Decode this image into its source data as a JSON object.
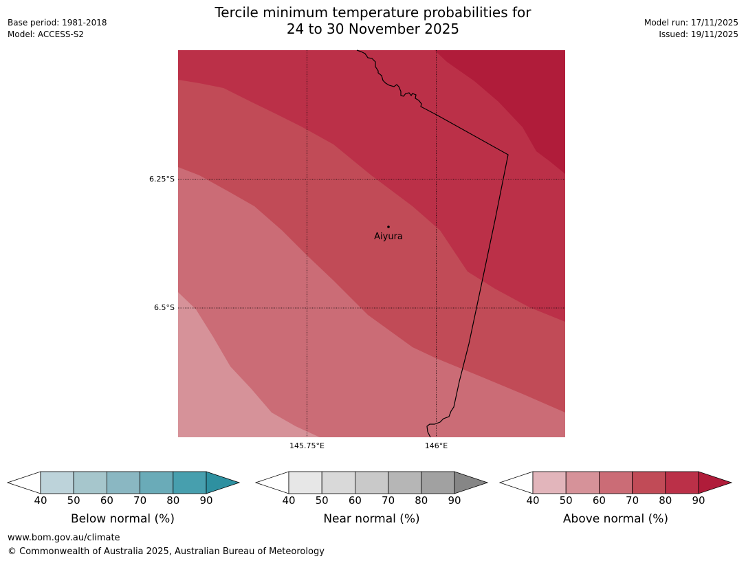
{
  "header": {
    "title_line1": "Tercile minimum temperature probabilities for",
    "title_line2": "24 to 30 November 2025",
    "base_period": "Base period: 1981-2018",
    "model": "Model: ACCESS-S2",
    "model_run": "Model run: 17/11/2025",
    "issued": "Issued: 19/11/2025"
  },
  "map": {
    "lat_labels": [
      "6.25°S",
      "6.5°S"
    ],
    "lon_labels": [
      "145.75°E",
      "146°E"
    ],
    "place_name": "Aiyura"
  },
  "colorbars": [
    {
      "label": "Below normal (%)",
      "ticks": [
        "40",
        "50",
        "60",
        "70",
        "80",
        "90"
      ],
      "colors": [
        "#bdd3da",
        "#a6c6cc",
        "#8ab7c2",
        "#6aabb8",
        "#479fae"
      ],
      "extend_color": "#2e90a0"
    },
    {
      "label": "Near normal (%)",
      "ticks": [
        "40",
        "50",
        "60",
        "70",
        "80",
        "90"
      ],
      "colors": [
        "#e7e7e7",
        "#d9d9d9",
        "#c9c9c9",
        "#b6b6b6",
        "#a1a1a1"
      ],
      "extend_color": "#868686"
    },
    {
      "label": "Above normal (%)",
      "ticks": [
        "40",
        "50",
        "60",
        "70",
        "80",
        "90"
      ],
      "colors": [
        "#e2b5bb",
        "#d69299",
        "#cb6c76",
        "#c14b57",
        "#bb3048"
      ],
      "extend_color": "#b01c3a"
    }
  ],
  "footer": {
    "website": "www.bom.gov.au/climate",
    "copyright": "© Commonwealth of Australia 2025, Australian Bureau of Meteorology"
  }
}
